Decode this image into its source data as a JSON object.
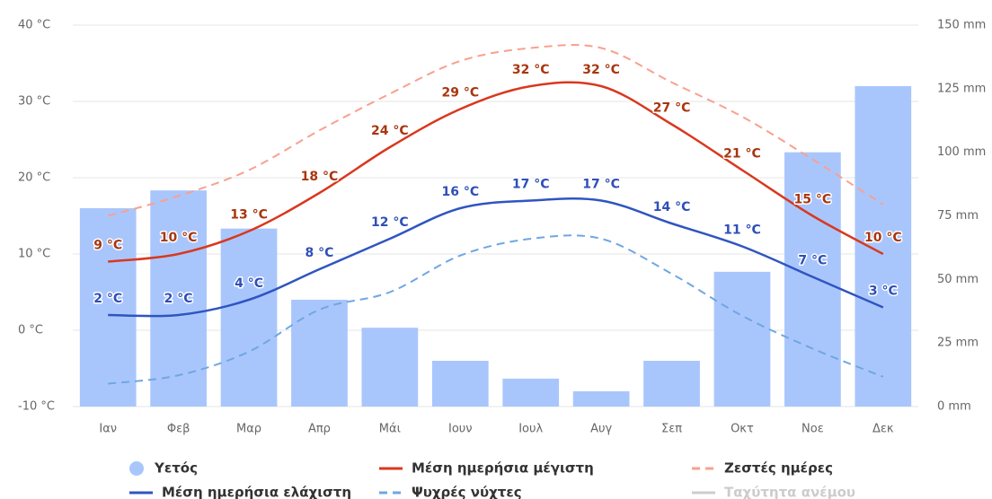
{
  "chart_data": {
    "type": "combo",
    "categories": [
      "Ιαν",
      "Φεβ",
      "Μαρ",
      "Απρ",
      "Μάι",
      "Ιουν",
      "Ιουλ",
      "Αυγ",
      "Σεπ",
      "Οκτ",
      "Νοε",
      "Δεκ"
    ],
    "ylim": [
      -10,
      40
    ],
    "yticks": [
      {
        "value": -10,
        "label": "-10 °C"
      },
      {
        "value": 0,
        "label": "0 °C"
      },
      {
        "value": 10,
        "label": "10 °C"
      },
      {
        "value": 20,
        "label": "20 °C"
      },
      {
        "value": 30,
        "label": "30 °C"
      },
      {
        "value": 40,
        "label": "40 °C"
      }
    ],
    "y2lim": [
      0,
      150
    ],
    "y2ticks": [
      {
        "value": 0,
        "label": "0 mm"
      },
      {
        "value": 25,
        "label": "25 mm"
      },
      {
        "value": 50,
        "label": "50 mm"
      },
      {
        "value": 75,
        "label": "75 mm"
      },
      {
        "value": 100,
        "label": "100 mm"
      },
      {
        "value": 125,
        "label": "125 mm"
      },
      {
        "value": 150,
        "label": "150 mm"
      }
    ],
    "grid": true,
    "series": [
      {
        "name": "Υετός",
        "type": "bar",
        "axis": "y2",
        "color": "#a9c6fc",
        "values": [
          78,
          85,
          70,
          42,
          31,
          18,
          11,
          6,
          18,
          53,
          100,
          126
        ]
      },
      {
        "name": "Μέση ημερήσια μέγιστη",
        "type": "line",
        "color": "#d9381e",
        "label_color": "#a8360f",
        "values": [
          9,
          10,
          13,
          18,
          24,
          29,
          32,
          32,
          27,
          21,
          15,
          10
        ],
        "value_labels": [
          "9 °C",
          "10 °C",
          "13 °C",
          "18 °C",
          "24 °C",
          "29 °C",
          "32 °C",
          "32 °C",
          "27 °C",
          "21 °C",
          "15 °C",
          "10 °C"
        ]
      },
      {
        "name": "Ζεστές ημέρες",
        "type": "line",
        "dashed": true,
        "color": "#f9a08e",
        "values": [
          15,
          17.6,
          21,
          26.2,
          31,
          35.3,
          37,
          37,
          32.5,
          28,
          22.4,
          16.5
        ]
      },
      {
        "name": "Μέση ημερήσια ελάχιστη",
        "type": "line",
        "color": "#2f55c0",
        "label_color": "#2f4fb8",
        "values": [
          2,
          2,
          4,
          8,
          12,
          16,
          17,
          17,
          14,
          11,
          7,
          3
        ],
        "value_labels": [
          "2 °C",
          "2 °C",
          "4 °C",
          "8 °C",
          "12 °C",
          "16 °C",
          "17 °C",
          "17 °C",
          "14 °C",
          "11 °C",
          "7 °C",
          "3 °C"
        ]
      },
      {
        "name": "Ψυχρές νύχτες",
        "type": "line",
        "dashed": true,
        "color": "#6fa7e2",
        "values": [
          -7,
          -5.9,
          -2.8,
          2.7,
          5,
          9.8,
          12,
          12,
          7.4,
          1.9,
          -2.4,
          -6.1
        ]
      }
    ],
    "hidden_series": [
      {
        "name": "Ταχύτητα ανέμου",
        "color": "#cccccc"
      }
    ]
  }
}
